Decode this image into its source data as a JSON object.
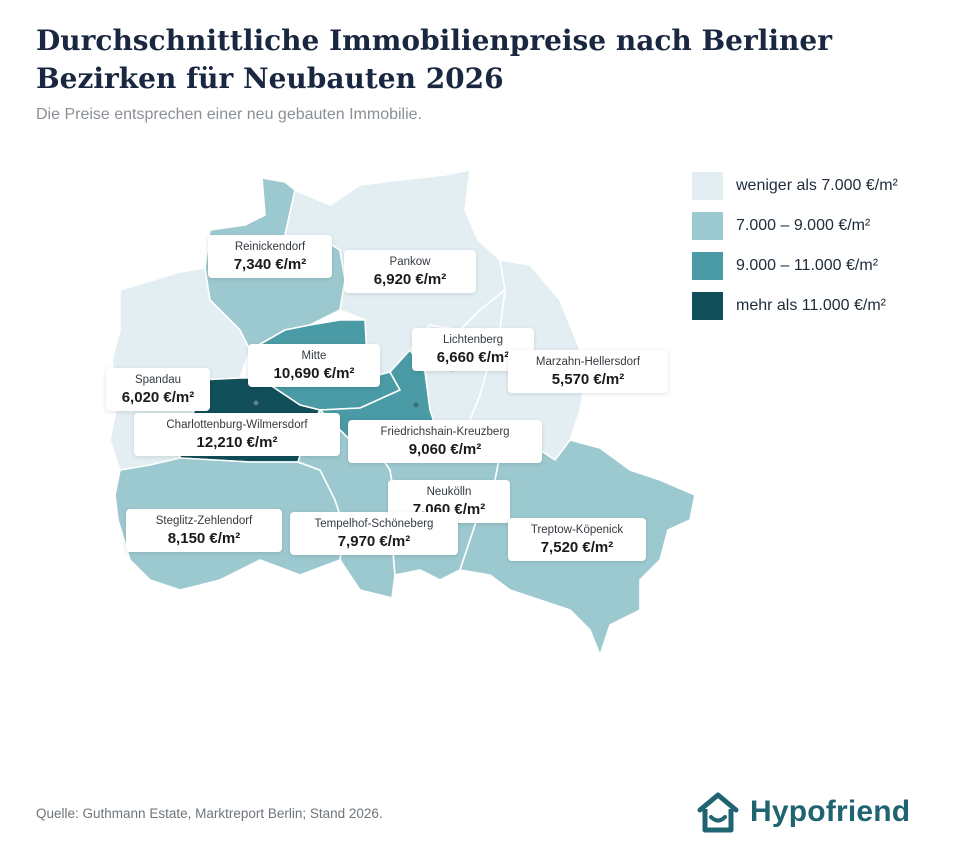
{
  "title": "Durchschnittliche Immobilienpreise nach Berliner Bezirken für Neubauten 2026",
  "subtitle": "Die Preise entsprechen einer neu gebauten Immobilie.",
  "colors": {
    "lt7000": "#e2eef1",
    "7000_9000": "#9cc9cf",
    "9000_11000": "#4a9ba5",
    "gt11000": "#114f5a",
    "brand": "#1f6470"
  },
  "legend": [
    {
      "label": "weniger als 7.000 €/m²",
      "color": "#e2eef1"
    },
    {
      "label": "7.000 – 9.000 €/m²",
      "color": "#9cc9cf"
    },
    {
      "label": "9.000 – 11.000 €/m²",
      "color": "#4a9ba5"
    },
    {
      "label": "mehr als 11.000 €/m²",
      "color": "#114f5a"
    }
  ],
  "districts": [
    {
      "name": "Reinickendorf",
      "price": "7,340 €/m²",
      "category": "7000_9000"
    },
    {
      "name": "Pankow",
      "price": "6,920 €/m²",
      "category": "lt7000"
    },
    {
      "name": "Lichtenberg",
      "price": "6,660 €/m²",
      "category": "lt7000"
    },
    {
      "name": "Mitte",
      "price": "10,690 €/m²",
      "category": "9000_11000"
    },
    {
      "name": "Marzahn-Hellersdorf",
      "price": "5,570 €/m²",
      "category": "lt7000"
    },
    {
      "name": "Spandau",
      "price": "6,020 €/m²",
      "category": "lt7000"
    },
    {
      "name": "Charlottenburg-Wilmersdorf",
      "price": "12,210 €/m²",
      "category": "gt11000"
    },
    {
      "name": "Friedrichshain-Kreuzberg",
      "price": "9,060 €/m²",
      "category": "9000_11000"
    },
    {
      "name": "Neukölln",
      "price": "7,060 €/m²",
      "category": "7000_9000"
    },
    {
      "name": "Steglitz-Zehlendorf",
      "price": "8,150 €/m²",
      "category": "7000_9000"
    },
    {
      "name": "Tempelhof-Schöneberg",
      "price": "7,970 €/m²",
      "category": "7000_9000"
    },
    {
      "name": "Treptow-Köpenick",
      "price": "7,520 €/m²",
      "category": "7000_9000"
    }
  ],
  "source": "Quelle: Guthmann Estate, Marktreport Berlin; Stand 2026.",
  "brand": {
    "name": "Hypofriend",
    "icon": "house-smile-icon"
  }
}
